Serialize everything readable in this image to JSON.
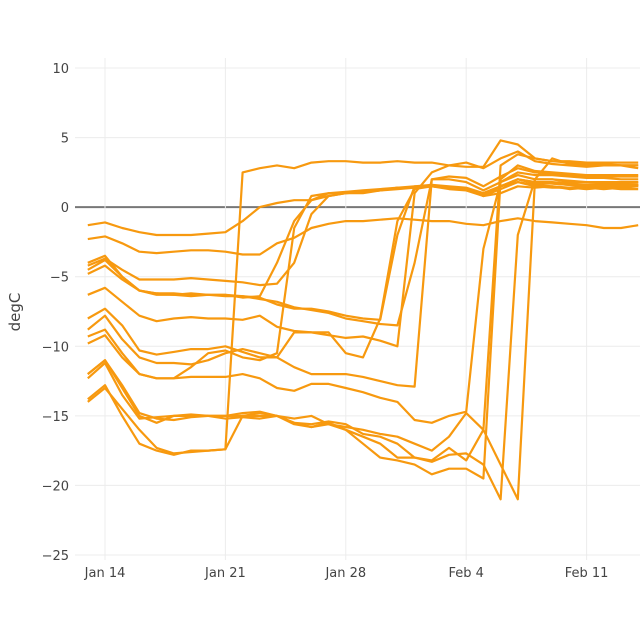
{
  "chart_data": {
    "type": "line",
    "title": "",
    "xlabel": "",
    "ylabel": "degC",
    "ylim": [
      -25,
      10
    ],
    "yticks": [
      "10",
      "5",
      "0",
      "−5",
      "−10",
      "−15",
      "−20",
      "−25"
    ],
    "ytick_values": [
      10,
      5,
      0,
      -5,
      -10,
      -15,
      -20,
      -25
    ],
    "xticks": [
      "Jan 14",
      "Jan 21",
      "Jan 28",
      "Feb 4",
      "Feb 11"
    ],
    "grid": true,
    "zero_line": true,
    "legend": "none",
    "line_color": "#f7990f",
    "x": [
      "Jan 13",
      "Jan 14",
      "Jan 15",
      "Jan 16",
      "Jan 17",
      "Jan 18",
      "Jan 19",
      "Jan 20",
      "Jan 21",
      "Jan 22",
      "Jan 23",
      "Jan 24",
      "Jan 25",
      "Jan 26",
      "Jan 27",
      "Jan 28",
      "Jan 29",
      "Jan 30",
      "Jan 31",
      "Feb 1",
      "Feb 2",
      "Feb 3",
      "Feb 4",
      "Feb 5",
      "Feb 6",
      "Feb 7",
      "Feb 8",
      "Feb 9",
      "Feb 10",
      "Feb 11",
      "Feb 12",
      "Feb 13",
      "Feb 14"
    ],
    "series": [
      {
        "values": [
          -1.3,
          -1.1,
          -1.5,
          -1.8,
          -2,
          -2,
          -2,
          -1.9,
          -1.8,
          -1,
          0,
          0.3,
          0.5,
          0.5,
          0.8,
          1,
          1,
          1.2,
          1.4,
          1.5,
          1.5,
          1.4,
          1.3,
          0.8,
          1,
          1.5,
          1.4,
          1.5,
          1.3,
          1.4,
          1.3,
          1.4,
          1.5
        ]
      },
      {
        "values": [
          -2.3,
          -2.1,
          -2.6,
          -3.2,
          -3.3,
          -3.2,
          -3.1,
          -3.1,
          -3.2,
          -3.4,
          -3.4,
          -2.6,
          -2.2,
          -1.5,
          -1.2,
          -1,
          -1,
          -0.9,
          -0.8,
          -0.9,
          -1,
          -1,
          -1.2,
          -1.3,
          -1,
          -0.8,
          -1,
          -1.1,
          -1.2,
          -1.3,
          -1.5,
          -1.5,
          -1.3
        ]
      },
      {
        "values": [
          -14,
          -13,
          -14.5,
          -16,
          -17.3,
          -17.7,
          -17.6,
          -17.5,
          -17.4,
          2.5,
          2.8,
          3,
          2.8,
          3.2,
          3.3,
          3.3,
          3.2,
          3.2,
          3.3,
          3.2,
          3.2,
          3,
          2.9,
          2.9,
          4.8,
          4.5,
          3.5,
          3.3,
          3.3,
          3.2,
          3.2,
          3.2,
          3.2
        ]
      },
      {
        "values": [
          -4.2,
          -3.7,
          -4.5,
          -5.2,
          -5.2,
          -5.2,
          -5.1,
          -5.2,
          -5.3,
          -5.4,
          -5.6,
          -5.5,
          -4,
          -0.5,
          0.8,
          1,
          1.1,
          1.2,
          1.3,
          1.4,
          1.5,
          1.3,
          1.2,
          0.8,
          1.5,
          1.8,
          1.6,
          1.5,
          1.4,
          1.5,
          1.4,
          1.5,
          1.5
        ]
      },
      {
        "values": [
          -4.5,
          -3.8,
          -5,
          -6,
          -6.2,
          -6.2,
          -6.3,
          -6.3,
          -6.4,
          -6.4,
          -6.5,
          -7,
          -7.3,
          -7.3,
          -7.5,
          -7.8,
          -8,
          -8.1,
          -2,
          1.5,
          1.6,
          1.5,
          1.4,
          1,
          1.5,
          2,
          1.8,
          1.8,
          1.7,
          1.6,
          1.7,
          1.6,
          1.6
        ]
      },
      {
        "values": [
          -4.8,
          -4.2,
          -5.2,
          -6,
          -6.3,
          -6.3,
          -6.2,
          -6.3,
          -6.3,
          -6.4,
          -6.6,
          -6.8,
          -7.2,
          -7.4,
          -7.6,
          -8,
          -8.2,
          -8.4,
          -8.5,
          -4,
          2,
          2,
          1.8,
          1.2,
          1.8,
          2.3,
          2,
          2,
          1.9,
          1.8,
          1.8,
          1.7,
          1.8
        ]
      },
      {
        "values": [
          -6.3,
          -5.8,
          -6.8,
          -7.8,
          -8.2,
          -8,
          -7.9,
          -8,
          -8,
          -8.1,
          -7.8,
          -8.6,
          -8.9,
          -9,
          -9.2,
          -9.4,
          -9.3,
          -9.6,
          -10,
          1,
          2.5,
          3,
          3.2,
          2.8,
          3.5,
          4,
          3.3,
          3.1,
          3,
          2.9,
          3,
          3,
          3
        ]
      },
      {
        "values": [
          -8,
          -7.3,
          -8.5,
          -10.3,
          -10.6,
          -10.4,
          -10.2,
          -10.2,
          -10,
          -10.4,
          -10.8,
          -10.8,
          -9,
          -9,
          -9,
          -10.5,
          -10.8,
          -8,
          -1,
          1.3,
          1.5,
          1.4,
          1.3,
          1,
          1.5,
          2,
          1.7,
          1.7,
          1.6,
          1.5,
          1.6,
          1.6,
          1.6
        ]
      },
      {
        "values": [
          -8.8,
          -7.8,
          -9.5,
          -10.8,
          -11.2,
          -11.2,
          -11.3,
          -11,
          -10.5,
          -10.2,
          -10.5,
          -10.8,
          -11.5,
          -12,
          -12,
          -12,
          -12.2,
          -12.5,
          -12.8,
          -12.9,
          2,
          2.2,
          2.1,
          1.5,
          2.2,
          2.8,
          2.5,
          2.4,
          2.3,
          2.2,
          2.2,
          2.2,
          2.2
        ]
      },
      {
        "values": [
          -12,
          -11,
          -13,
          -15,
          -15.5,
          -15,
          -15,
          -15,
          -15,
          -15,
          -14.8,
          -15,
          -15.5,
          -15.6,
          -15.4,
          -15.6,
          -16.3,
          -16.5,
          -17,
          -18,
          -18.2,
          -17.3,
          -18.2,
          -16,
          3,
          3.8,
          3.5,
          3.3,
          3.2,
          3.1,
          3.1,
          3,
          3
        ]
      },
      {
        "values": [
          -12.3,
          -11.2,
          -13.5,
          -15.2,
          -15.1,
          -15,
          -14.9,
          -15,
          -15.2,
          -15.1,
          -15.2,
          -15,
          -15.6,
          -15.8,
          -15.5,
          -16,
          -16.5,
          -17,
          -18,
          -18,
          -18.3,
          -17.8,
          -17.7,
          -18.5,
          -21,
          -2,
          2,
          2,
          1.8,
          1.8,
          1.8,
          1.8,
          1.8
        ]
      },
      {
        "values": [
          -13.8,
          -12.8,
          -15,
          -17,
          -17.5,
          -17.8,
          -17.5,
          -17.5,
          -17.4,
          -15,
          -15,
          -15,
          -15.5,
          -15.8,
          -15.6,
          -16,
          -17,
          -18,
          -18.2,
          -18.5,
          -19.2,
          -18.8,
          -18.8,
          -19.5,
          2,
          3,
          2.6,
          2.5,
          2.4,
          2.3,
          2.3,
          2.3,
          2.3
        ]
      },
      {
        "values": [
          -12,
          -11,
          -12.8,
          -14.8,
          -15.2,
          -15.3,
          -15.1,
          -15,
          -15,
          -14.8,
          -14.7,
          -15,
          -15.2,
          -15,
          -15.6,
          -15.8,
          -16,
          -16.3,
          -16.5,
          -17,
          -17.5,
          -16.5,
          -14.8,
          -16,
          -18.5,
          -21,
          2,
          3.5,
          3.1,
          3,
          3,
          3,
          2.8
        ]
      },
      {
        "values": [
          -9.3,
          -8.8,
          -10.5,
          -12,
          -12.3,
          -12.3,
          -12.2,
          -12.2,
          -12.2,
          -12,
          -12.3,
          -13,
          -13.2,
          -12.7,
          -12.7,
          -13,
          -13.3,
          -13.7,
          -14,
          -15.3,
          -15.5,
          -15,
          -14.7,
          -3,
          1.8,
          2.5,
          2.3,
          2.3,
          2.2,
          2.1,
          2.1,
          2,
          2
        ]
      },
      {
        "values": [
          -4,
          -3.5,
          -5,
          -6,
          -6.2,
          -6.3,
          -6.4,
          -6.3,
          -6.3,
          -6.5,
          -6.4,
          -4,
          -1,
          0.5,
          1,
          1.1,
          1.2,
          1.3,
          1.4,
          1.4,
          1.5,
          1.4,
          1.3,
          0.8,
          1.3,
          1.8,
          1.5,
          1.4,
          1.4,
          1.3,
          1.4,
          1.3,
          1.3
        ]
      },
      {
        "values": [
          -9.8,
          -9.2,
          -10.8,
          -12,
          -12.3,
          -12.3,
          -11.5,
          -10.5,
          -10.3,
          -10.8,
          -11,
          -10.5,
          -1.5,
          0.8,
          1,
          1,
          1.1,
          1.2,
          1.4,
          1.4,
          1.5,
          1.4,
          1.3,
          0.9,
          1.5,
          2,
          1.8,
          1.7,
          1.6,
          1.6,
          1.5,
          1.6,
          1.6
        ]
      }
    ]
  }
}
